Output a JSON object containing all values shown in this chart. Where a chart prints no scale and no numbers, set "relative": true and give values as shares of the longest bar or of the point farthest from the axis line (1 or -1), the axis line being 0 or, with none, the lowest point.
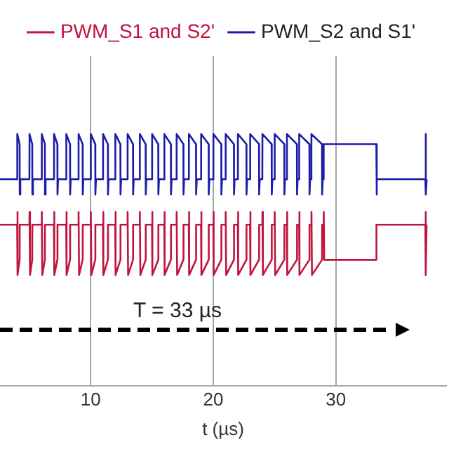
{
  "chart_data": {
    "type": "line",
    "relative": true,
    "xlabel": "t (µs)",
    "xlim": [
      2.6,
      39
    ],
    "xticks": [
      10,
      20,
      30
    ],
    "grid": "x",
    "tick_labels": "x",
    "legend": "top",
    "marker": "none",
    "line_style": "solid",
    "annotations": [
      "T = 33 µs"
    ],
    "series": [
      {
        "name": "PWM_S1 and S2'",
        "color": "#c0143c",
        "x": [
          2.6,
          4,
          4.01,
          4.05,
          4.2,
          4.21,
          5,
          5.01,
          5.05,
          5.23,
          5.24,
          6,
          6.01,
          6.05,
          6.26,
          6.27,
          7,
          7.01,
          7.05,
          7.28,
          7.29,
          8,
          8.01,
          8.05,
          8.31,
          8.32,
          9,
          9.01,
          9.05,
          9.34,
          9.35,
          10,
          10.01,
          10.05,
          10.37,
          10.38,
          11,
          11.01,
          11.05,
          11.4,
          11.41,
          12,
          12.01,
          12.05,
          12.42,
          12.43,
          13,
          13.01,
          13.05,
          13.45,
          13.46,
          14,
          14.01,
          14.05,
          14.48,
          14.49,
          15,
          15.01,
          15.05,
          15.51,
          15.52,
          16,
          16.01,
          16.05,
          16.54,
          16.55,
          17,
          17.01,
          17.05,
          17.56,
          17.57,
          18,
          18.01,
          18.05,
          18.59,
          18.6,
          19,
          19.01,
          19.05,
          19.62,
          19.63,
          20,
          20.01,
          20.05,
          20.65,
          20.66,
          21,
          21.01,
          21.05,
          21.68,
          21.69,
          22,
          22.01,
          22.05,
          22.7,
          22.71,
          23,
          23.01,
          23.05,
          23.73,
          23.74,
          24,
          24.01,
          24.05,
          24.76,
          24.77,
          25,
          25.01,
          25.05,
          25.79,
          25.8,
          26,
          26.01,
          26.05,
          26.82,
          26.83,
          27,
          27.01,
          27.05,
          27.84,
          27.85,
          28,
          28.01,
          28.05,
          28.87,
          28.88,
          29,
          29.01,
          29.05,
          33.3,
          33.31,
          37.3,
          37.31,
          37.35,
          37.4,
          37.5
        ],
        "values": [
          0.64,
          0.64,
          0.69,
          0.44,
          0.5,
          0.64,
          0.64,
          0.69,
          0.44,
          0.5,
          0.64,
          0.64,
          0.69,
          0.44,
          0.5,
          0.64,
          0.64,
          0.69,
          0.44,
          0.5,
          0.64,
          0.64,
          0.69,
          0.44,
          0.5,
          0.64,
          0.64,
          0.69,
          0.44,
          0.5,
          0.64,
          0.64,
          0.69,
          0.44,
          0.5,
          0.64,
          0.64,
          0.69,
          0.44,
          0.5,
          0.64,
          0.64,
          0.69,
          0.44,
          0.5,
          0.64,
          0.64,
          0.69,
          0.44,
          0.5,
          0.64,
          0.64,
          0.69,
          0.44,
          0.5,
          0.64,
          0.64,
          0.69,
          0.44,
          0.5,
          0.64,
          0.64,
          0.69,
          0.44,
          0.5,
          0.64,
          0.64,
          0.69,
          0.44,
          0.5,
          0.64,
          0.64,
          0.69,
          0.44,
          0.5,
          0.64,
          0.64,
          0.69,
          0.44,
          0.5,
          0.64,
          0.64,
          0.69,
          0.44,
          0.5,
          0.64,
          0.64,
          0.69,
          0.44,
          0.5,
          0.64,
          0.64,
          0.69,
          0.44,
          0.5,
          0.64,
          0.64,
          0.69,
          0.44,
          0.5,
          0.64,
          0.64,
          0.69,
          0.44,
          0.5,
          0.64,
          0.64,
          0.69,
          0.44,
          0.5,
          0.64,
          0.64,
          0.69,
          0.44,
          0.5,
          0.64,
          0.64,
          0.69,
          0.44,
          0.5,
          0.64,
          0.64,
          0.69,
          0.44,
          0.5,
          0.64,
          0.64,
          0.69,
          0.5,
          0.5,
          0.64,
          0.64,
          0.69,
          0.44,
          0.64,
          0.64
        ]
      },
      {
        "name": "PWM_S2 and S1'",
        "color": "#1c1ca8",
        "x": [
          2.6,
          4,
          4.01,
          4.2,
          4.21,
          4.26,
          5,
          5.01,
          5.23,
          5.24,
          5.29,
          6,
          6.01,
          6.26,
          6.27,
          6.32,
          7,
          7.01,
          7.28,
          7.29,
          7.34,
          8,
          8.01,
          8.31,
          8.32,
          8.37,
          9,
          9.01,
          9.34,
          9.35,
          9.4,
          10,
          10.01,
          10.37,
          10.38,
          10.43,
          11,
          11.01,
          11.4,
          11.41,
          11.46,
          12,
          12.01,
          12.42,
          12.43,
          12.48,
          13,
          13.01,
          13.45,
          13.46,
          13.51,
          14,
          14.01,
          14.48,
          14.49,
          14.54,
          15,
          15.01,
          15.51,
          15.52,
          15.57,
          16,
          16.01,
          16.54,
          16.55,
          16.6,
          17,
          17.01,
          17.56,
          17.57,
          17.62,
          18,
          18.01,
          18.59,
          18.6,
          18.65,
          19,
          19.01,
          19.62,
          19.63,
          19.68,
          20,
          20.01,
          20.65,
          20.66,
          20.71,
          21,
          21.01,
          21.68,
          21.69,
          21.74,
          22,
          22.01,
          22.7,
          22.71,
          22.76,
          23,
          23.01,
          23.73,
          23.74,
          23.79,
          24,
          24.01,
          24.76,
          24.77,
          24.82,
          25,
          25.01,
          25.79,
          25.8,
          25.85,
          26,
          26.01,
          26.82,
          26.83,
          26.88,
          27,
          27.01,
          27.84,
          27.85,
          27.9,
          28,
          28.01,
          28.87,
          28.88,
          28.93,
          29,
          29.01,
          33.3,
          33.31,
          33.36,
          37.3,
          37.31,
          37.36,
          37.41,
          37.5
        ],
        "values": [
          0.82,
          0.82,
          1,
          0.96,
          0.76,
          0.82,
          0.82,
          1,
          0.96,
          0.76,
          0.82,
          0.82,
          1,
          0.96,
          0.76,
          0.82,
          0.82,
          1,
          0.96,
          0.76,
          0.82,
          0.82,
          1,
          0.96,
          0.76,
          0.82,
          0.82,
          1,
          0.96,
          0.76,
          0.82,
          0.82,
          1,
          0.96,
          0.76,
          0.82,
          0.82,
          1,
          0.96,
          0.76,
          0.82,
          0.82,
          1,
          0.96,
          0.76,
          0.82,
          0.82,
          1,
          0.96,
          0.76,
          0.82,
          0.82,
          1,
          0.96,
          0.76,
          0.82,
          0.82,
          1,
          0.96,
          0.76,
          0.82,
          0.82,
          1,
          0.96,
          0.76,
          0.82,
          0.82,
          1,
          0.96,
          0.76,
          0.82,
          0.82,
          1,
          0.96,
          0.76,
          0.82,
          0.82,
          1,
          0.96,
          0.76,
          0.82,
          0.82,
          1,
          0.96,
          0.76,
          0.82,
          0.82,
          1,
          0.96,
          0.76,
          0.82,
          0.82,
          1,
          0.96,
          0.76,
          0.82,
          0.82,
          1,
          0.96,
          0.76,
          0.82,
          0.82,
          1,
          0.96,
          0.76,
          0.82,
          0.82,
          1,
          0.96,
          0.76,
          0.82,
          0.82,
          1,
          0.96,
          0.76,
          0.82,
          0.82,
          1,
          0.96,
          0.76,
          0.82,
          0.82,
          1,
          0.96,
          0.76,
          0.82,
          0.82,
          0.96,
          0.96,
          0.76,
          0.82,
          0.82,
          1,
          0.76,
          0.82,
          0.82
        ]
      }
    ]
  }
}
